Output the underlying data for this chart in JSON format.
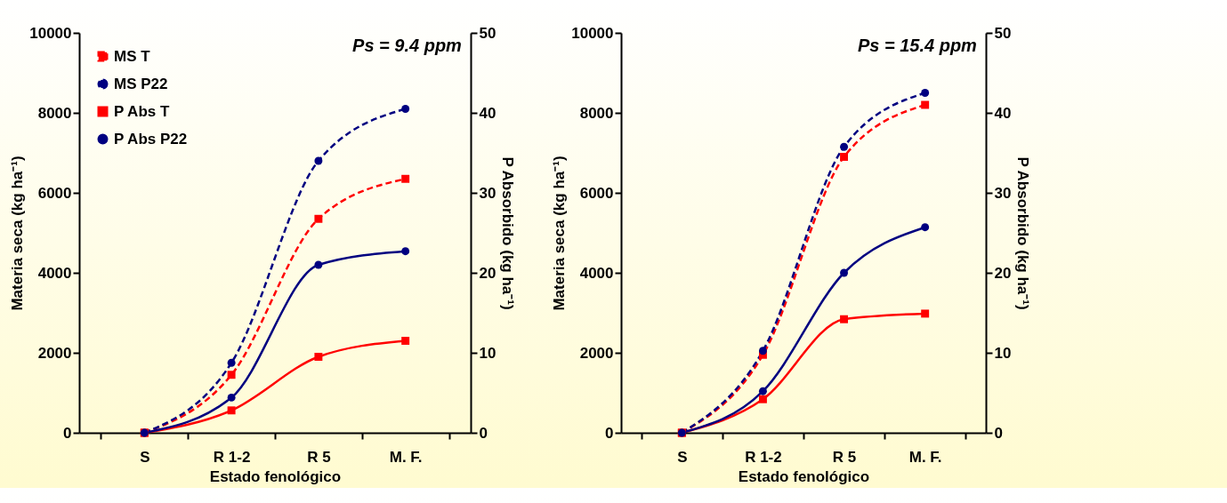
{
  "chart_data": [
    {
      "type": "line",
      "title": "Ps = 9.4 ppm",
      "categories": [
        "S",
        "R 1-2",
        "R 5",
        "M. F."
      ],
      "xlabel": "Estado fenológico",
      "ylabel": "Materia seca (kg ha⁻¹)",
      "y2label": "P Absorbido (kg ha⁻¹)",
      "ylim": [
        0,
        10000
      ],
      "yticks": [
        0,
        2000,
        4000,
        6000,
        8000,
        10000
      ],
      "y2lim": [
        0,
        50
      ],
      "y2ticks": [
        0,
        10,
        20,
        30,
        40,
        50
      ],
      "legend": "top left",
      "series": [
        {
          "name": "MS T",
          "color": "#ff0000",
          "marker": "square",
          "line_style": "dashed",
          "values": [
            0,
            1450,
            5350,
            6350
          ]
        },
        {
          "name": "MS P22",
          "color": "#000080",
          "marker": "circle",
          "line_style": "dashed",
          "values": [
            0,
            1750,
            6800,
            8100
          ]
        },
        {
          "name": "P Abs T",
          "color": "#ff0000",
          "marker": "square",
          "line_style": "solid",
          "axis": "y2",
          "values": [
            0,
            2.8,
            9.5,
            11.5
          ]
        },
        {
          "name": "P Abs P22",
          "color": "#000080",
          "marker": "circle",
          "line_style": "solid",
          "axis": "y2",
          "values": [
            0,
            4.4,
            21,
            22.7
          ]
        }
      ]
    },
    {
      "type": "line",
      "title": "Ps = 15.4 ppm",
      "categories": [
        "S",
        "R 1-2",
        "R 5",
        "M. F."
      ],
      "xlabel": "Estado fenológico",
      "ylabel": "Materia seca (kg ha⁻¹)",
      "y2label": "P Absorbido (kg ha⁻¹)",
      "ylim": [
        0,
        10000
      ],
      "yticks": [
        0,
        2000,
        4000,
        6000,
        8000,
        10000
      ],
      "y2lim": [
        0,
        50
      ],
      "y2ticks": [
        0,
        10,
        20,
        30,
        40,
        50
      ],
      "legend": "top left",
      "series": [
        {
          "name": "MS T",
          "color": "#ff0000",
          "marker": "square",
          "line_style": "dashed",
          "values": [
            0,
            1950,
            6900,
            8200
          ]
        },
        {
          "name": "MS P22",
          "color": "#000080",
          "marker": "circle",
          "line_style": "dashed",
          "values": [
            0,
            2050,
            7150,
            8500
          ]
        },
        {
          "name": "P Abs T",
          "color": "#ff0000",
          "marker": "square",
          "line_style": "solid",
          "axis": "y2",
          "values": [
            0,
            4.2,
            14.2,
            14.9
          ]
        },
        {
          "name": "P Abs P22",
          "color": "#000080",
          "marker": "circle",
          "line_style": "solid",
          "axis": "y2",
          "values": [
            0,
            5.2,
            20,
            25.7
          ]
        }
      ]
    }
  ]
}
